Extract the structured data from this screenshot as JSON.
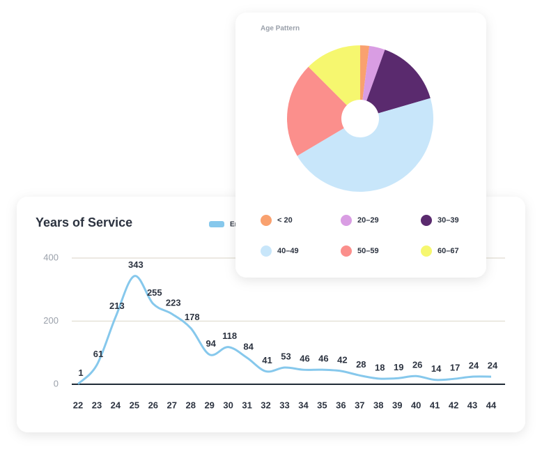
{
  "chart_data": [
    {
      "type": "line",
      "title": "Years of Service",
      "categories": [
        "22",
        "23",
        "24",
        "25",
        "26",
        "27",
        "28",
        "29",
        "30",
        "31",
        "32",
        "33",
        "34",
        "35",
        "36",
        "37",
        "38",
        "39",
        "40",
        "41",
        "42",
        "43",
        "44"
      ],
      "series": [
        {
          "name": "En",
          "color": "#86c8ec",
          "values": [
            1,
            61,
            213,
            343,
            255,
            223,
            178,
            94,
            118,
            84,
            41,
            53,
            46,
            46,
            42,
            28,
            18,
            19,
            26,
            14,
            17,
            24,
            24
          ]
        }
      ],
      "ylim": [
        0,
        400
      ],
      "yticks": [
        0,
        200,
        400
      ],
      "grid": true
    },
    {
      "type": "pie",
      "title": "Age Pattern",
      "categories": [
        "< 20",
        "20–29",
        "30–39",
        "40–49",
        "50–59",
        "60–67"
      ],
      "values": [
        2,
        3.5,
        15,
        46,
        21,
        12.5
      ],
      "colors": [
        "#f9a16f",
        "#d99de3",
        "#5a2a6e",
        "#c8e6fa",
        "#fb8f8c",
        "#f6f76f"
      ]
    }
  ]
}
